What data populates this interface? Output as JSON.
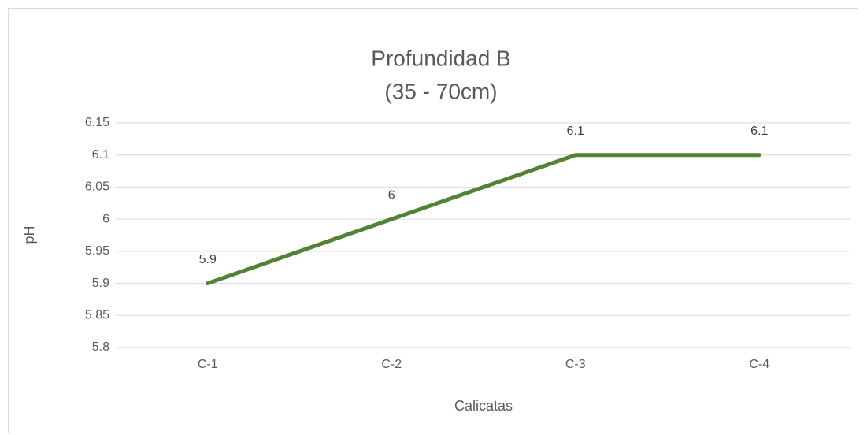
{
  "chart_data": {
    "type": "line",
    "title": "Profundidad B",
    "subtitle": "(35 - 70cm)",
    "x_label": "Calicatas",
    "y_label": "pH",
    "categories": [
      "C-1",
      "C-2",
      "C-3",
      "C-4"
    ],
    "values": [
      5.9,
      6,
      6.1,
      6.1
    ],
    "color": "#548235",
    "ylim": [
      5.8,
      6.15
    ],
    "yticks": [
      5.8,
      5.85,
      5.9,
      5.95,
      6,
      6.05,
      6.1,
      6.15
    ],
    "grid": true
  }
}
